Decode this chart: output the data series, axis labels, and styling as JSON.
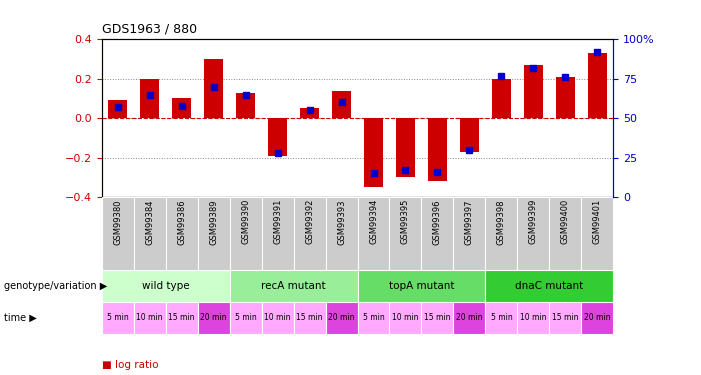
{
  "title": "GDS1963 / 880",
  "samples": [
    "GSM99380",
    "GSM99384",
    "GSM99386",
    "GSM99389",
    "GSM99390",
    "GSM99391",
    "GSM99392",
    "GSM99393",
    "GSM99394",
    "GSM99395",
    "GSM99396",
    "GSM99397",
    "GSM99398",
    "GSM99399",
    "GSM99400",
    "GSM99401"
  ],
  "log_ratio": [
    0.09,
    0.2,
    0.1,
    0.3,
    0.13,
    -0.19,
    0.05,
    0.14,
    -0.35,
    -0.3,
    -0.32,
    -0.17,
    0.2,
    0.27,
    0.21,
    0.33
  ],
  "percentile_rank": [
    57,
    65,
    58,
    70,
    65,
    28,
    55,
    60,
    15,
    17,
    16,
    30,
    77,
    82,
    76,
    92
  ],
  "bar_color": "#cc0000",
  "dot_color": "#0000cc",
  "ylim": [
    -0.4,
    0.4
  ],
  "y2lim": [
    0,
    100
  ],
  "yticks": [
    -0.4,
    -0.2,
    0.0,
    0.2,
    0.4
  ],
  "y2ticks": [
    0,
    25,
    50,
    75,
    100
  ],
  "groups": [
    {
      "label": "wild type",
      "start": 0,
      "end": 4,
      "color": "#ccffcc"
    },
    {
      "label": "recA mutant",
      "start": 4,
      "end": 8,
      "color": "#99ee99"
    },
    {
      "label": "topA mutant",
      "start": 8,
      "end": 12,
      "color": "#66dd66"
    },
    {
      "label": "dnaC mutant",
      "start": 12,
      "end": 16,
      "color": "#33cc33"
    }
  ],
  "time_labels": [
    "5 min",
    "10 min",
    "15 min",
    "20 min",
    "5 min",
    "10 min",
    "15 min",
    "20 min",
    "5 min",
    "10 min",
    "15 min",
    "20 min",
    "5 min",
    "10 min",
    "15 min",
    "20 min"
  ],
  "ylabel_left_color": "#cc0000",
  "ylabel_right_color": "#0000cc",
  "zero_line_color": "#cc0000",
  "bar_width": 0.6,
  "sample_box_color": "#cccccc",
  "time_light": "#ffaaff",
  "time_dark": "#dd44dd"
}
